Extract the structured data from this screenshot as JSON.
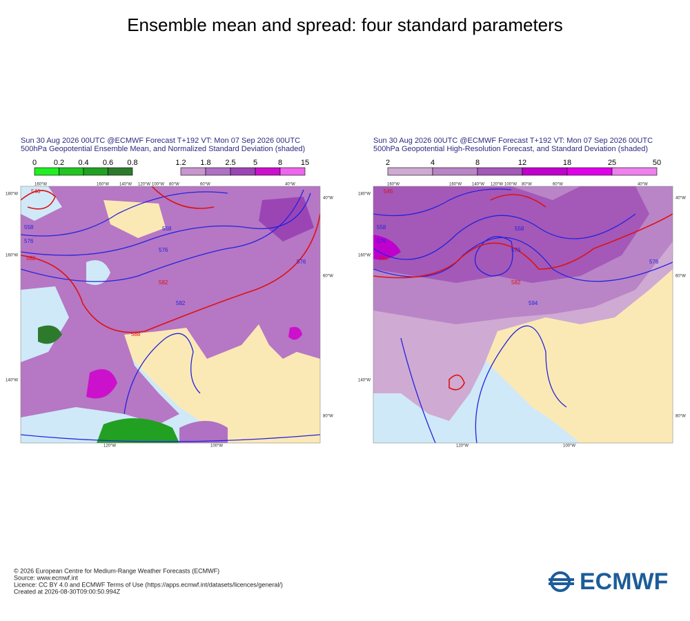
{
  "title": "Ensemble mean and spread: four standard parameters",
  "panels": [
    {
      "header": [
        "Sun 30 Aug 2026 00UTC @ECMWF Forecast T+192 VT: Mon 07 Sep 2026 00UTC",
        "500hPa Geopotential Ensemble Mean, and Normalized Standard Deviation (shaded)"
      ],
      "colorbars": [
        {
          "labels": [
            "0",
            "0.2",
            "0.4",
            "0.6",
            "0.8"
          ],
          "colors": [
            "#22ee22",
            "#22c422",
            "#22a022",
            "#2d7a2d"
          ]
        },
        {
          "labels": [
            "1.2",
            "1.8",
            "2.5",
            "5",
            "8",
            "15"
          ],
          "colors": [
            "#c896cf",
            "#b070c3",
            "#9b45b5",
            "#cc11cc",
            "#ee66ee"
          ]
        }
      ],
      "top_labels": [
        "160°W",
        "160°W",
        "140°W",
        "120°W",
        "100°W",
        "80°W",
        "60°W",
        "40°W"
      ],
      "bottom_labels": [
        "120°W",
        "100°W"
      ],
      "left_labels": [
        "180°W",
        "160°W",
        "140°W"
      ],
      "right_labels": [
        "40°W",
        "60°W",
        "80°W"
      ],
      "contour_labels": [
        "546",
        "558",
        "576",
        "582",
        "558",
        "576",
        "582",
        "576",
        "582",
        "588"
      ]
    },
    {
      "header": [
        "Sun 30 Aug 2026 00UTC @ECMWF Forecast T+192 VT: Mon 07 Sep 2026 00UTC",
        "500hPa Geopotential High-Resolution Forecast, and Standard Deviation (shaded)"
      ],
      "colorbars": [
        {
          "labels": [
            "2",
            "4",
            "8",
            "12",
            "18",
            "25",
            "50"
          ],
          "colors": [
            "#cfaad3",
            "#b985c6",
            "#a458b8",
            "#c000cc",
            "#e000ea",
            "#ee80ee"
          ]
        }
      ],
      "top_labels": [
        "160°W",
        "160°W",
        "140°W",
        "120°W",
        "100°W",
        "80°W",
        "60°W",
        "40°W"
      ],
      "bottom_labels": [
        "120°W",
        "100°W"
      ],
      "left_labels": [
        "180°W",
        "160°W",
        "140°W"
      ],
      "right_labels": [
        "40°W",
        "60°W",
        "80°W"
      ],
      "contour_labels": [
        "546",
        "558",
        "576",
        "582",
        "558",
        "576",
        "582",
        "576",
        "594"
      ]
    }
  ],
  "footer": [
    "© 2026 European Centre for Medium-Range Weather Forecasts (ECMWF)",
    "Source: www.ecmwf.int",
    "Licence: CC BY 4.0 and ECMWF Terms of Use (https://apps.ecmwf.int/datasets/licences/general/)",
    "Created at 2026-08-30T09:00:50.994Z"
  ],
  "logo": "ECMWF"
}
